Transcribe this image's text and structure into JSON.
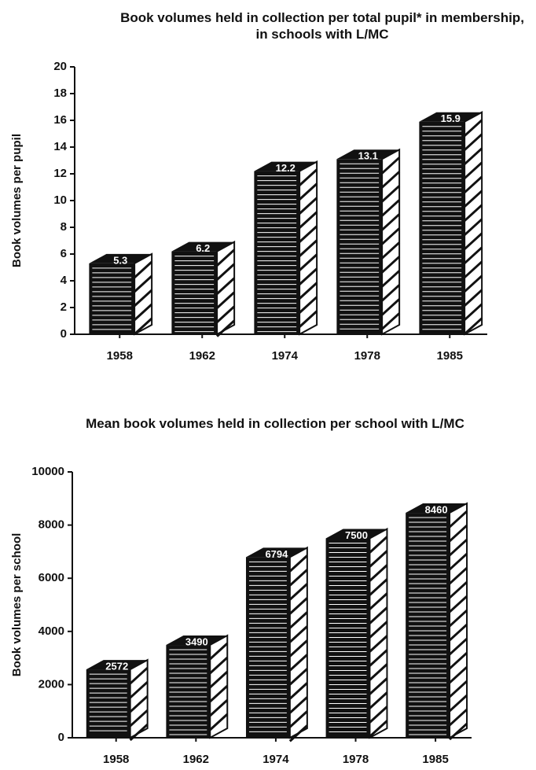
{
  "chart_data": [
    {
      "type": "bar",
      "title": "Book volumes held in collection per total pupil* in membership, in schools with L/MC",
      "y_label": "Book volumes per pupil",
      "categories": [
        "1958",
        "1962",
        "1974",
        "1978",
        "1985"
      ],
      "values": [
        5.3,
        6.2,
        12.2,
        13.1,
        15.9
      ],
      "color": "#111111",
      "ylim": [
        0,
        20
      ],
      "yticks": [
        0,
        2,
        4,
        6,
        8,
        10,
        12,
        14,
        16,
        18,
        20
      ]
    },
    {
      "type": "bar",
      "title": "Mean book volumes held in collection per school with L/MC",
      "y_label": "Book volumes per school",
      "categories": [
        "1958",
        "1962",
        "1974",
        "1978",
        "1985"
      ],
      "values": [
        2572,
        3490,
        6794,
        7500,
        8460
      ],
      "color": "#111111",
      "ylim": [
        0,
        10000
      ],
      "yticks": [
        0,
        2000,
        4000,
        6000,
        8000,
        10000
      ]
    }
  ]
}
